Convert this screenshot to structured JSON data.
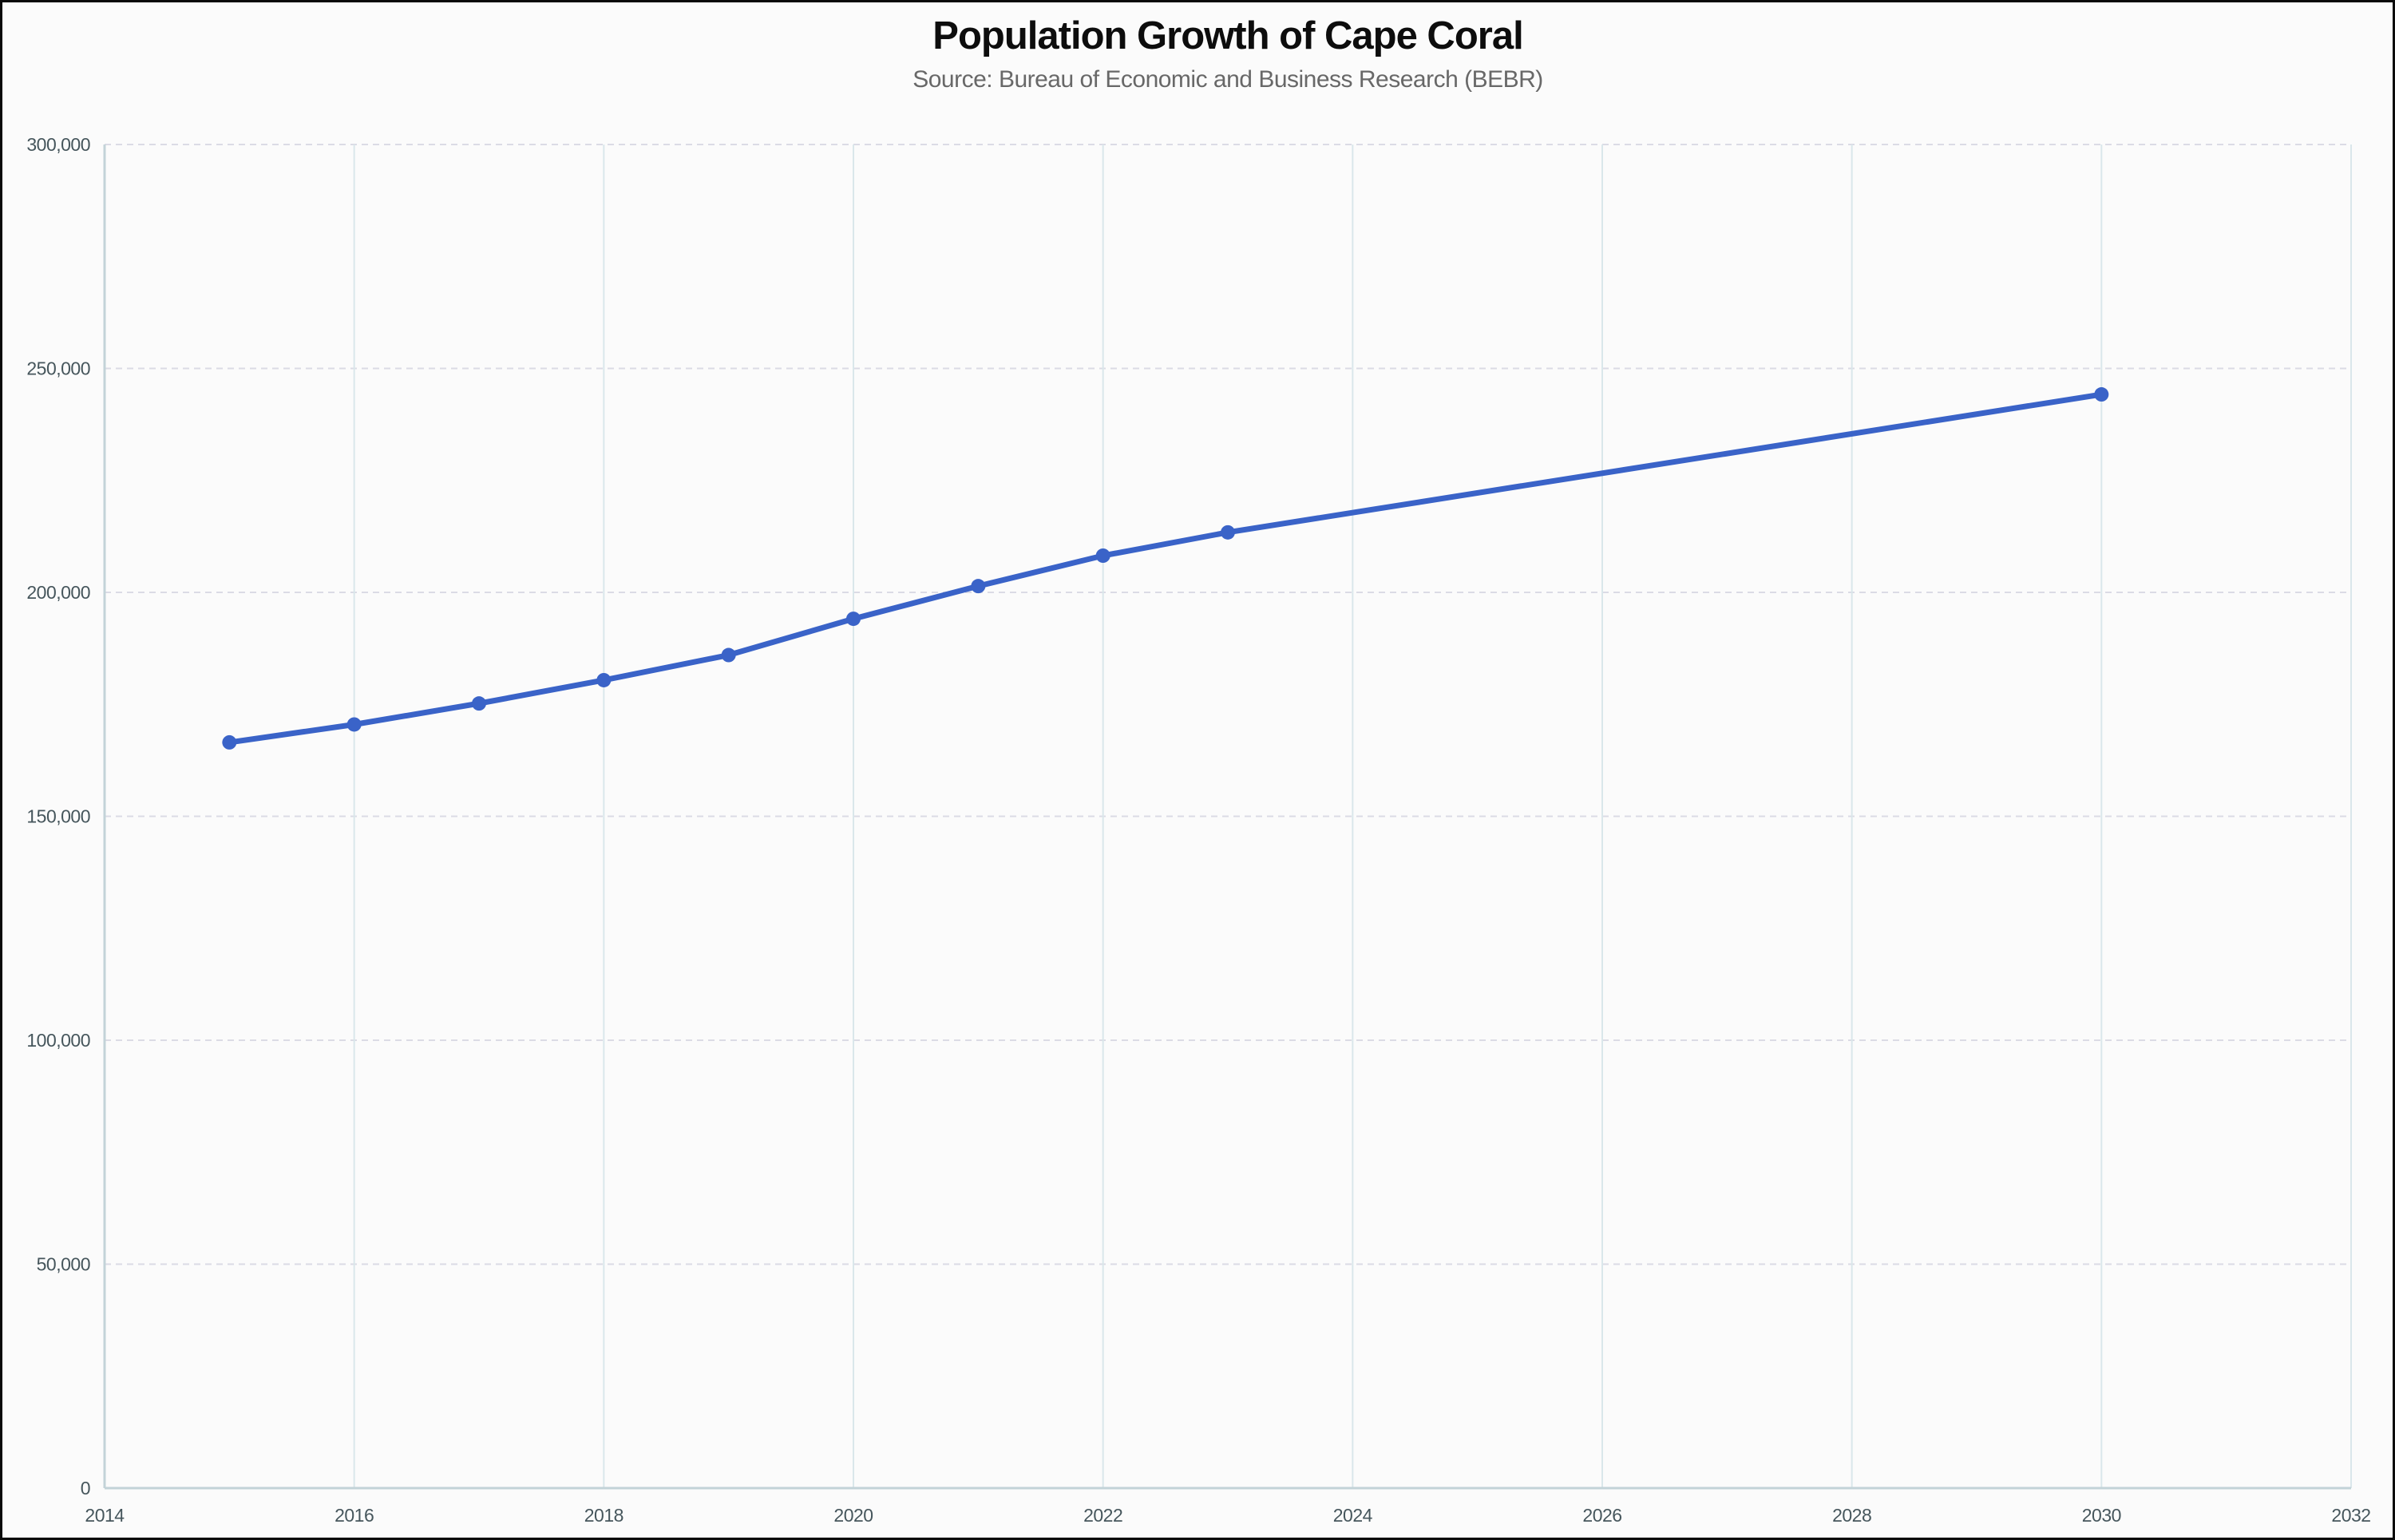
{
  "chart_data": {
    "type": "line",
    "title": "Population Growth of Cape Coral",
    "subtitle": "Source: Bureau of Economic and Business Research (BEBR)",
    "xlabel": "",
    "ylabel": "",
    "series": [
      {
        "name": "Population",
        "points": [
          {
            "x": 2015,
            "y": 166500
          },
          {
            "x": 2016,
            "y": 170500
          },
          {
            "x": 2017,
            "y": 175200
          },
          {
            "x": 2018,
            "y": 180400
          },
          {
            "x": 2019,
            "y": 186000
          },
          {
            "x": 2020,
            "y": 194100
          },
          {
            "x": 2021,
            "y": 201400
          },
          {
            "x": 2022,
            "y": 208200
          },
          {
            "x": 2023,
            "y": 213400
          },
          {
            "x": 2030,
            "y": 244200
          }
        ]
      }
    ],
    "xlim": [
      2014,
      2032
    ],
    "ylim": [
      0,
      300000
    ],
    "x_tick_step": 2,
    "y_tick_step": 50000,
    "x_tick_labels": [
      "2014",
      "2016",
      "2018",
      "2020",
      "2022",
      "2024",
      "2026",
      "2028",
      "2030",
      "2032"
    ],
    "y_tick_labels": [
      "0",
      "50,000",
      "100,000",
      "150,000",
      "200,000",
      "250,000",
      "300,000"
    ],
    "grid": true,
    "legend_position": "none",
    "colors": {
      "line": "#3A63C8",
      "marker": "#3A63C8",
      "vertical_grid": "#DAE7EB",
      "horizontal_grid": "#DBDBE5",
      "axis": "#C3D3D8",
      "tick_label": "#46565C",
      "title": "#0d0d0d",
      "subtitle": "#686868",
      "background": "#FBFBFB",
      "frame_border": "#0a0a0a"
    }
  }
}
